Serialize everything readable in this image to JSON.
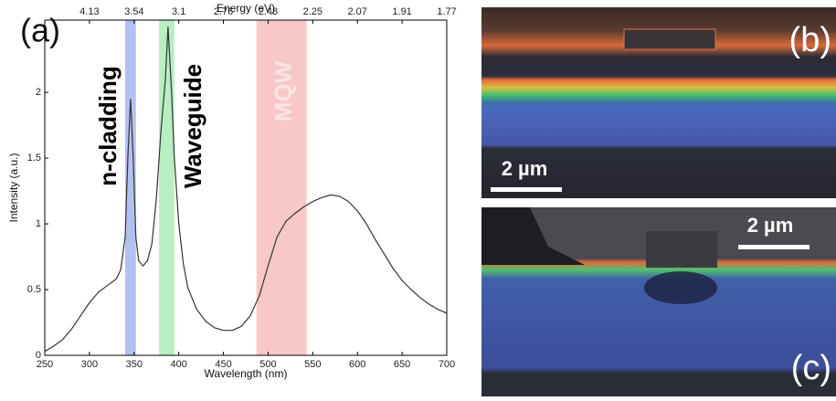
{
  "chart_data": {
    "type": "line",
    "panel_label": "(a)",
    "x_label": "Wavelength (nm)",
    "y_label": "Intensity (a.u.)",
    "x": [
      250,
      260,
      270,
      280,
      290,
      300,
      310,
      320,
      330,
      335,
      340,
      343,
      346,
      349,
      352,
      355,
      360,
      365,
      370,
      375,
      380,
      385,
      388,
      392,
      395,
      400,
      405,
      410,
      420,
      430,
      440,
      450,
      460,
      470,
      480,
      490,
      500,
      510,
      520,
      530,
      540,
      550,
      560,
      570,
      580,
      590,
      600,
      610,
      620,
      630,
      640,
      650,
      660,
      670,
      680,
      690,
      700
    ],
    "values": [
      0.03,
      0.07,
      0.12,
      0.2,
      0.3,
      0.4,
      0.48,
      0.53,
      0.58,
      0.65,
      0.9,
      1.5,
      1.95,
      1.5,
      0.9,
      0.72,
      0.68,
      0.72,
      0.85,
      1.2,
      1.7,
      2.1,
      2.5,
      2.0,
      1.5,
      1.0,
      0.7,
      0.52,
      0.35,
      0.26,
      0.21,
      0.19,
      0.19,
      0.22,
      0.3,
      0.45,
      0.68,
      0.9,
      1.02,
      1.08,
      1.13,
      1.17,
      1.2,
      1.22,
      1.21,
      1.17,
      1.1,
      1.0,
      0.88,
      0.77,
      0.66,
      0.57,
      0.5,
      0.44,
      0.39,
      0.35,
      0.32
    ],
    "color": "#333333",
    "xlim": [
      250,
      700
    ],
    "ylim": [
      0,
      2.55
    ],
    "xticks": [
      250,
      300,
      350,
      400,
      450,
      500,
      550,
      600,
      650,
      700
    ],
    "yticks": [
      0,
      0.5,
      1,
      1.5,
      2
    ],
    "top_axis": {
      "label": "Energy (eV)",
      "ticks": [
        {
          "value": 300,
          "label": "4.13"
        },
        {
          "value": 350,
          "label": "3.54"
        },
        {
          "value": 400,
          "label": "3.1"
        },
        {
          "value": 450,
          "label": "2.76"
        },
        {
          "value": 500,
          "label": "2.48"
        },
        {
          "value": 550,
          "label": "2.25"
        },
        {
          "value": 600,
          "label": "2.07"
        },
        {
          "value": 650,
          "label": "1.91"
        },
        {
          "value": 700,
          "label": "1.77"
        }
      ]
    },
    "bands": [
      {
        "label": "n-cladding",
        "range": [
          340,
          352
        ],
        "color": "#b4c0f2",
        "label_color": "#000000"
      },
      {
        "label": "Waveguide",
        "range": [
          378,
          395
        ],
        "color": "#b8eec0",
        "label_color": "#000000"
      },
      {
        "label": "MQW",
        "range": [
          487,
          543
        ],
        "color": "#f8c8c8",
        "label_color": "#fbe3e3"
      }
    ]
  },
  "micrographs": [
    {
      "label": "(b)",
      "scale_bar": "2 µm"
    },
    {
      "label": "(c)",
      "scale_bar": "2 µm"
    }
  ]
}
